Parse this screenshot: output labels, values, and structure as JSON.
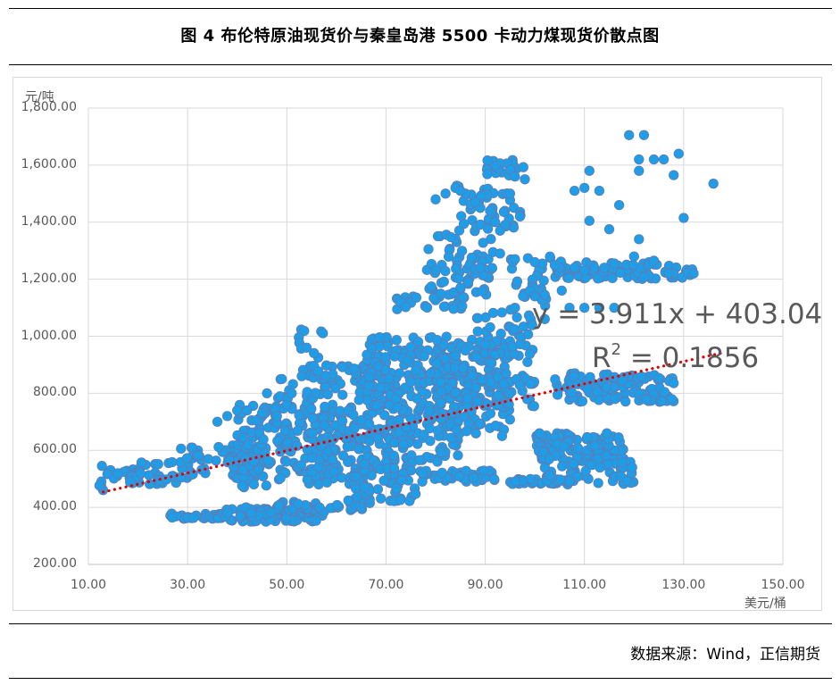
{
  "figure": {
    "title": "图 4  布伦特原油现货价与秦皇岛港 5500 卡动力煤现货价散点图",
    "source": "数据来源：Wind，正信期货"
  },
  "chart_data": {
    "type": "scatter",
    "title": "图 4  布伦特原油现货价与秦皇岛港 5500 卡动力煤现货价散点图",
    "xlabel": "美元/桶",
    "ylabel": "元/吨",
    "xlim": [
      10,
      150
    ],
    "ylim": [
      200,
      1800
    ],
    "xticks": [
      "10.00",
      "30.00",
      "50.00",
      "70.00",
      "90.00",
      "110.00",
      "130.00",
      "150.00"
    ],
    "yticks": [
      "200.00",
      "400.00",
      "600.00",
      "800.00",
      "1,000.00",
      "1,200.00",
      "1,400.00",
      "1,600.00",
      "1,800.00"
    ],
    "grid": true,
    "legend": "none",
    "marker_color": "#1f9ee8",
    "marker_edge_color": "#5b7db8",
    "trendline": {
      "slope": 3.911,
      "intercept": 403.04,
      "x_range": [
        13,
        138
      ],
      "color": "#e00000",
      "style": "dotted"
    },
    "equation_text": "y = 3.911x + 403.04",
    "r2_prefix": "R",
    "r2_exponent": "2",
    "r2_suffix": " = 0.1856",
    "series": [
      {
        "clusters": [
          {
            "x": [
              12,
              22
            ],
            "y": [
              460,
              550
            ],
            "n": 22
          },
          {
            "x": [
              18,
              30
            ],
            "y": [
              470,
              560
            ],
            "n": 26
          },
          {
            "x": [
              26,
              38
            ],
            "y": [
              360,
              380
            ],
            "n": 30
          },
          {
            "x": [
              36,
              58
            ],
            "y": [
              350,
              400
            ],
            "n": 90
          },
          {
            "x": [
              48,
              67
            ],
            "y": [
              390,
              420
            ],
            "n": 50
          },
          {
            "x": [
              28,
              45
            ],
            "y": [
              500,
              620
            ],
            "n": 70
          },
          {
            "x": [
              40,
              60
            ],
            "y": [
              470,
              760
            ],
            "n": 170
          },
          {
            "x": [
              54,
              72
            ],
            "y": [
              480,
              900
            ],
            "n": 200
          },
          {
            "x": [
              66,
              85
            ],
            "y": [
              560,
              1000
            ],
            "n": 270
          },
          {
            "x": [
              80,
              95
            ],
            "y": [
              650,
              990
            ],
            "n": 140
          },
          {
            "x": [
              86,
              100
            ],
            "y": [
              750,
              870
            ],
            "n": 70
          },
          {
            "x": [
              62,
              76
            ],
            "y": [
              420,
              560
            ],
            "n": 60
          },
          {
            "x": [
              76,
              92
            ],
            "y": [
              490,
              530
            ],
            "n": 40
          },
          {
            "x": [
              94,
              108
            ],
            "y": [
              480,
              500
            ],
            "n": 30
          },
          {
            "x": [
              100,
              118
            ],
            "y": [
              560,
              660
            ],
            "n": 110
          },
          {
            "x": [
              102,
              120
            ],
            "y": [
              480,
              560
            ],
            "n": 50
          },
          {
            "x": [
              104,
              128
            ],
            "y": [
              770,
              870
            ],
            "n": 110
          },
          {
            "x": [
              104,
              132
            ],
            "y": [
              1200,
              1260
            ],
            "n": 90
          },
          {
            "x": [
              72,
              86
            ],
            "y": [
              1090,
              1150
            ],
            "n": 30
          },
          {
            "x": [
              78,
              92
            ],
            "y": [
              1140,
              1360
            ],
            "n": 60
          },
          {
            "x": [
              84,
              98
            ],
            "y": [
              1360,
              1530
            ],
            "n": 45
          },
          {
            "x": [
              90,
              98
            ],
            "y": [
              1560,
              1630
            ],
            "n": 20
          },
          {
            "x": [
              95,
              106
            ],
            "y": [
              1100,
              1280
            ],
            "n": 30
          },
          {
            "x": [
              88,
              100
            ],
            "y": [
              900,
              1100
            ],
            "n": 40
          },
          {
            "x": [
              52,
              58
            ],
            "y": [
              860,
              1030
            ],
            "n": 14
          },
          {
            "x": [
              47,
              52
            ],
            "y": [
              780,
              860
            ],
            "n": 8
          }
        ],
        "points": [
          [
            119,
            1705
          ],
          [
            122,
            1705
          ],
          [
            121,
            1620
          ],
          [
            124,
            1620
          ],
          [
            126,
            1620
          ],
          [
            129,
            1640
          ],
          [
            136,
            1535
          ],
          [
            128,
            1565
          ],
          [
            121,
            1580
          ],
          [
            108,
            1510
          ],
          [
            110,
            1520
          ],
          [
            111,
            1580
          ],
          [
            113,
            1510
          ],
          [
            117,
            1460
          ],
          [
            111,
            1405
          ],
          [
            130,
            1415
          ],
          [
            115,
            1375
          ],
          [
            121,
            1340
          ],
          [
            105,
            1240
          ],
          [
            108,
            1240
          ],
          [
            112,
            1240
          ],
          [
            114,
            1240
          ],
          [
            120,
            1280
          ],
          [
            124,
            1265
          ],
          [
            128,
            1220
          ],
          [
            132,
            1220
          ],
          [
            127,
            1220
          ],
          [
            99,
            1160
          ],
          [
            102,
            1145
          ],
          [
            102,
            1060
          ],
          [
            100,
            1140
          ],
          [
            107,
            1100
          ],
          [
            96,
            1100
          ],
          [
            110,
            1100
          ],
          [
            113,
            1100
          ],
          [
            116,
            1100
          ],
          [
            85,
            1170
          ],
          [
            88,
            1220
          ],
          [
            88,
            1235
          ],
          [
            89,
            1240
          ],
          [
            93,
            1290
          ],
          [
            96,
            1270
          ],
          [
            100,
            1260
          ],
          [
            104,
            1250
          ],
          [
            110,
            1230
          ],
          [
            96,
            1560
          ],
          [
            98,
            1550
          ],
          [
            95,
            1500
          ],
          [
            86,
            1500
          ],
          [
            91,
            1440
          ],
          [
            92,
            1400
          ],
          [
            89,
            1450
          ],
          [
            94,
            1390
          ],
          [
            93,
            1370
          ],
          [
            97,
            1420
          ],
          [
            84,
            1520
          ],
          [
            85,
            1510
          ],
          [
            88,
            1470
          ],
          [
            82,
            1500
          ],
          [
            80,
            1480
          ],
          [
            54,
            960
          ],
          [
            53,
            860
          ],
          [
            51,
            800
          ],
          [
            49,
            850
          ],
          [
            46,
            800
          ],
          [
            50,
            760
          ],
          [
            40,
            740
          ],
          [
            42,
            740
          ],
          [
            45,
            730
          ],
          [
            48,
            720
          ],
          [
            38,
            720
          ],
          [
            36,
            700
          ],
          [
            72,
            780
          ],
          [
            75,
            840
          ],
          [
            79,
            870
          ],
          [
            82,
            920
          ],
          [
            86,
            950
          ],
          [
            90,
            970
          ]
        ]
      }
    ]
  }
}
